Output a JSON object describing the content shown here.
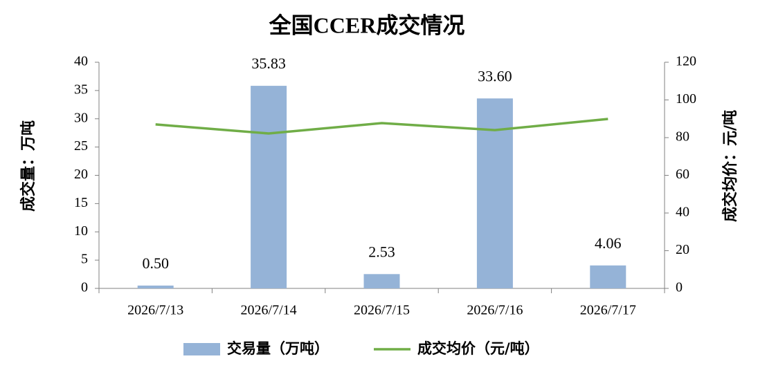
{
  "chart_data": {
    "type": "bar",
    "title": "全国CCER成交情况",
    "ylabel": "成交量：万吨",
    "y2label": "成交均价：元/吨",
    "categories": [
      "2026/7/13",
      "2026/7/14",
      "2026/7/15",
      "2026/7/16",
      "2026/7/17"
    ],
    "series": [
      {
        "name": "交易量（万吨）",
        "type": "bar",
        "color": "#95b3d7",
        "values": [
          0.5,
          35.83,
          2.53,
          33.6,
          4.06
        ],
        "value_labels": [
          "0.50",
          "35.83",
          "2.53",
          "33.60",
          "4.06"
        ]
      },
      {
        "name": "成交均价（元/吨）",
        "type": "line",
        "axis": "y2",
        "color": "#70ad47",
        "values": [
          87,
          82.2,
          87.7,
          84,
          89.9
        ]
      }
    ],
    "ylim": [
      0,
      40
    ],
    "yticks": [
      0,
      5,
      10,
      15,
      20,
      25,
      30,
      35,
      40
    ],
    "y2lim": [
      0,
      120
    ],
    "y2ticks": [
      0,
      20,
      40,
      60,
      80,
      100,
      120
    ],
    "grid": false,
    "legend": "bottom"
  }
}
